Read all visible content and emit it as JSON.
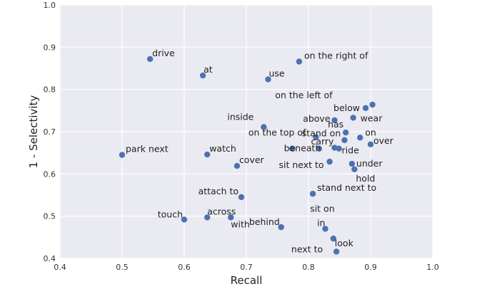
{
  "chart_data": {
    "type": "scatter",
    "title": "",
    "xlabel": "Recall",
    "ylabel": "1 - Selectivity",
    "xlim": [
      0.4,
      1.0
    ],
    "ylim": [
      0.4,
      1.0
    ],
    "xticks": [
      "0.4",
      "0.5",
      "0.6",
      "0.7",
      "0.8",
      "0.9",
      "1.0"
    ],
    "yticks": [
      "0.4",
      "0.5",
      "0.6",
      "0.7",
      "0.8",
      "0.9",
      "1.0"
    ],
    "grid": true,
    "background": "#EAEAF2",
    "grid_color": "#ffffff",
    "point_color": "#4C72B0",
    "points": [
      {
        "label": "drive",
        "x": 0.545,
        "y": 0.872,
        "anchor": "start",
        "dx": 3,
        "dy": -4
      },
      {
        "label": "at",
        "x": 0.63,
        "y": 0.833,
        "anchor": "start",
        "dx": 1,
        "dy": -4
      },
      {
        "label": "use",
        "x": 0.735,
        "y": 0.824,
        "anchor": "start",
        "dx": 1,
        "dy": -4
      },
      {
        "label": "on the right of",
        "x": 0.785,
        "y": 0.866,
        "anchor": "start",
        "dx": 7,
        "dy": -4
      },
      {
        "label": "on the left of",
        "x": 0.903,
        "y": 0.764,
        "anchor": "end",
        "dx": -56,
        "dy": -9
      },
      {
        "label": "below",
        "x": 0.892,
        "y": 0.756,
        "anchor": "end",
        "dx": -8,
        "dy": 4
      },
      {
        "label": "wear",
        "x": 0.872,
        "y": 0.733,
        "anchor": "start",
        "dx": 10,
        "dy": 5
      },
      {
        "label": "above",
        "x": 0.842,
        "y": 0.727,
        "anchor": "end",
        "dx": -6,
        "dy": 2
      },
      {
        "label": "inside",
        "x": 0.728,
        "y": 0.711,
        "anchor": "end",
        "dx": -14,
        "dy": -10
      },
      {
        "label": "has",
        "x": 0.86,
        "y": 0.698,
        "anchor": "end",
        "dx": -3,
        "dy": -7
      },
      {
        "label": "on",
        "x": 0.883,
        "y": 0.686,
        "anchor": "start",
        "dx": 7,
        "dy": -3
      },
      {
        "label": "on the top of",
        "x": 0.812,
        "y": 0.687,
        "anchor": "end",
        "dx": -14,
        "dy": -2
      },
      {
        "label": "stand on",
        "x": 0.817,
        "y": 0.66,
        "anchor": "start",
        "dx": -24,
        "dy": -17
      },
      {
        "label": "over",
        "x": 0.9,
        "y": 0.67,
        "anchor": "start",
        "dx": 4,
        "dy": -1
      },
      {
        "label": "carry",
        "x": 0.858,
        "y": 0.68,
        "anchor": "end",
        "dx": -15,
        "dy": 6
      },
      {
        "label": "ride",
        "x": 0.842,
        "y": 0.662,
        "anchor": "start",
        "dx": 10,
        "dy": 8
      },
      {
        "label": "beneath",
        "x": 0.774,
        "y": 0.66,
        "anchor": "end",
        "dx": 40,
        "dy": 4
      },
      {
        "label": "sit next to",
        "x": 0.834,
        "y": 0.629,
        "anchor": "end",
        "dx": -8,
        "dy": 9
      },
      {
        "label": "under",
        "x": 0.87,
        "y": 0.624,
        "anchor": "start",
        "dx": 6,
        "dy": 4
      },
      {
        "label": "sit on",
        "x": 0.849,
        "y": 0.66,
        "anchor": "end",
        "dx": -6,
        "dy": 89
      },
      {
        "label": "hold",
        "x": 0.874,
        "y": 0.611,
        "anchor": "start",
        "dx": 2,
        "dy": 17
      },
      {
        "label": "park next",
        "x": 0.5,
        "y": 0.645,
        "anchor": "start",
        "dx": 5,
        "dy": -4
      },
      {
        "label": "watch",
        "x": 0.637,
        "y": 0.646,
        "anchor": "start",
        "dx": 3,
        "dy": -4
      },
      {
        "label": "cover",
        "x": 0.685,
        "y": 0.619,
        "anchor": "start",
        "dx": 3,
        "dy": -4
      },
      {
        "label": "attach to",
        "x": 0.692,
        "y": 0.545,
        "anchor": "end",
        "dx": -4,
        "dy": -4
      },
      {
        "label": "stand next to",
        "x": 0.807,
        "y": 0.553,
        "anchor": "start",
        "dx": 6,
        "dy": -4
      },
      {
        "label": "touch",
        "x": 0.6,
        "y": 0.492,
        "anchor": "end",
        "dx": -2,
        "dy": -3
      },
      {
        "label": "across",
        "x": 0.637,
        "y": 0.497,
        "anchor": "start",
        "dx": 0,
        "dy": -4
      },
      {
        "label": "with",
        "x": 0.675,
        "y": 0.497,
        "anchor": "start",
        "dx": 0,
        "dy": 14
      },
      {
        "label": "behind",
        "x": 0.756,
        "y": 0.474,
        "anchor": "end",
        "dx": -2,
        "dy": -3
      },
      {
        "label": "in",
        "x": 0.827,
        "y": 0.47,
        "anchor": "end",
        "dx": 0,
        "dy": -4
      },
      {
        "label": "look",
        "x": 0.84,
        "y": 0.447,
        "anchor": "start",
        "dx": 2,
        "dy": 11
      },
      {
        "label": "next to",
        "x": 0.845,
        "y": 0.416,
        "anchor": "end",
        "dx": -19,
        "dy": 1
      }
    ]
  }
}
